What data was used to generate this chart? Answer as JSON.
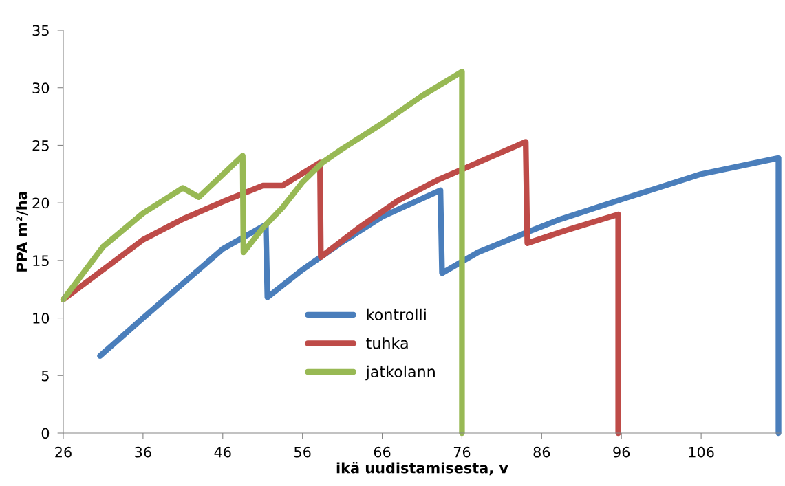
{
  "chart_data": {
    "type": "line",
    "xlabel": "ikä uudistamisesta, v",
    "ylabel": "PPA m²/ha",
    "xlim": [
      26,
      116
    ],
    "xticks": [
      26,
      36,
      46,
      56,
      66,
      76,
      86,
      96,
      106
    ],
    "ylim": [
      0,
      35
    ],
    "yticks": [
      0,
      5,
      10,
      15,
      20,
      25,
      30,
      35
    ],
    "grid": false,
    "legend": "bottom",
    "marker": "none",
    "line_style": "solid",
    "series": [
      {
        "name": "kontrolli",
        "color": "#4a7ebb",
        "x": [
          30.6,
          36,
          41,
          46,
          51.4,
          51.6,
          56,
          61,
          66,
          73.3,
          73.5,
          78,
          84,
          88,
          96,
          106,
          115.7,
          115.7
        ],
        "values": [
          6.7,
          10,
          13,
          16,
          18.1,
          11.8,
          14.2,
          16.6,
          18.8,
          21.1,
          13.9,
          15.7,
          17.4,
          18.5,
          20.3,
          22.5,
          23.9,
          0
        ]
      },
      {
        "name": "tuhka",
        "color": "#be4b48",
        "x": [
          26,
          31,
          36,
          41,
          46,
          51,
          53.5,
          58.2,
          58.3,
          63,
          68,
          73,
          78,
          84,
          84.2,
          89,
          95.6,
          95.6
        ],
        "values": [
          11.6,
          14.2,
          16.8,
          18.6,
          20.1,
          21.5,
          21.5,
          23.5,
          15.3,
          17.8,
          20.2,
          22,
          23.5,
          25.3,
          16.5,
          17.6,
          19,
          0
        ]
      },
      {
        "name": "jatkolann",
        "color": "#98b954",
        "x": [
          26,
          31,
          36,
          41,
          43,
          48.5,
          48.6,
          51,
          53.5,
          56,
          58.5,
          61,
          66,
          71,
          76,
          76
        ],
        "values": [
          11.6,
          16.2,
          19.1,
          21.3,
          20.5,
          24.1,
          15.7,
          17.8,
          19.6,
          21.8,
          23.5,
          24.7,
          26.9,
          29.3,
          31.4,
          0
        ]
      }
    ]
  }
}
